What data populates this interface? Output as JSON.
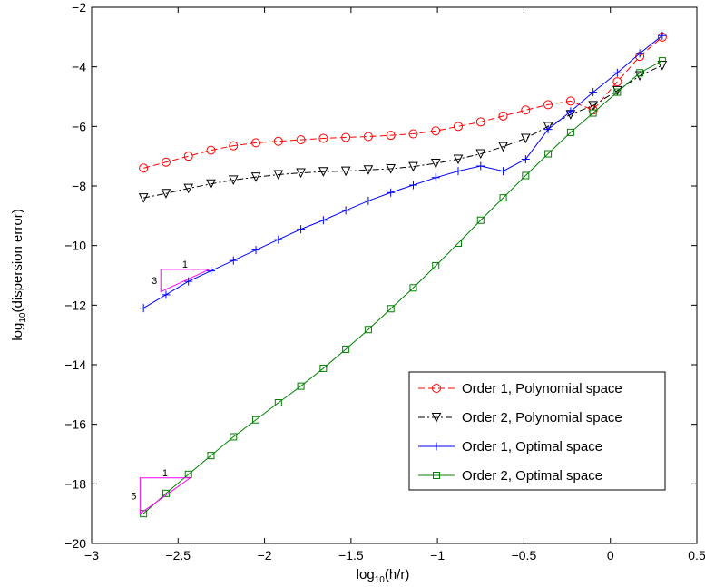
{
  "chart_data": {
    "type": "line",
    "title": "",
    "xlabel": {
      "base": "log",
      "sub": "10",
      "arg": "(h/r)"
    },
    "ylabel": {
      "base": "log",
      "sub": "10",
      "arg": "(dispersion error)"
    },
    "xlim": [
      -3,
      0.5
    ],
    "ylim": [
      -20,
      -2
    ],
    "xticks": [
      -3,
      -2.5,
      -2,
      -1.5,
      -1,
      -0.5,
      0,
      0.5
    ],
    "yticks": [
      -20,
      -18,
      -16,
      -14,
      -12,
      -10,
      -8,
      -6,
      -4,
      -2
    ],
    "xtick_labels": [
      "−3",
      "−2.5",
      "−2",
      "−1.5",
      "−1",
      "−0.5",
      "0",
      "0.5"
    ],
    "ytick_labels": [
      "−20",
      "−18",
      "−16",
      "−14",
      "−12",
      "−10",
      "−8",
      "−6",
      "−4",
      "−2"
    ],
    "grid": false,
    "legend_position": "bottom-right",
    "series": [
      {
        "name": "Order 1, Polynomial space",
        "color": "#ff0000",
        "line": "dashed",
        "marker": "circle",
        "x": [
          -2.7,
          -2.57,
          -2.44,
          -2.31,
          -2.18,
          -2.05,
          -1.92,
          -1.79,
          -1.66,
          -1.53,
          -1.4,
          -1.27,
          -1.14,
          -1.01,
          -0.88,
          -0.75,
          -0.62,
          -0.49,
          -0.36,
          -0.23,
          -0.1,
          0.04,
          0.17,
          0.3
        ],
        "y": [
          -7.4,
          -7.2,
          -7.0,
          -6.8,
          -6.65,
          -6.55,
          -6.5,
          -6.45,
          -6.4,
          -6.37,
          -6.34,
          -6.3,
          -6.25,
          -6.15,
          -6.0,
          -5.85,
          -5.65,
          -5.45,
          -5.27,
          -5.15,
          -5.45,
          -4.5,
          -3.65,
          -3.0
        ]
      },
      {
        "name": "Order 2, Polynomial space",
        "color": "#000000",
        "line": "dashdot",
        "marker": "triangle-down",
        "x": [
          -2.7,
          -2.57,
          -2.44,
          -2.31,
          -2.18,
          -2.05,
          -1.92,
          -1.79,
          -1.66,
          -1.53,
          -1.4,
          -1.27,
          -1.14,
          -1.01,
          -0.88,
          -0.75,
          -0.62,
          -0.49,
          -0.36,
          -0.23,
          -0.1,
          0.04,
          0.17,
          0.3
        ],
        "y": [
          -8.4,
          -8.25,
          -8.08,
          -7.93,
          -7.8,
          -7.7,
          -7.62,
          -7.56,
          -7.52,
          -7.5,
          -7.46,
          -7.42,
          -7.35,
          -7.24,
          -7.1,
          -6.92,
          -6.68,
          -6.4,
          -6.0,
          -5.6,
          -5.3,
          -4.8,
          -4.3,
          -3.95
        ]
      },
      {
        "name": "Order 1, Optimal space",
        "color": "#0000ff",
        "line": "solid",
        "marker": "plus",
        "x": [
          -2.7,
          -2.57,
          -2.44,
          -2.31,
          -2.18,
          -2.05,
          -1.92,
          -1.79,
          -1.66,
          -1.53,
          -1.4,
          -1.27,
          -1.14,
          -1.01,
          -0.88,
          -0.75,
          -0.62,
          -0.49,
          -0.36,
          -0.23,
          -0.1,
          0.04,
          0.17,
          0.3
        ],
        "y": [
          -12.1,
          -11.65,
          -11.2,
          -10.85,
          -10.5,
          -10.15,
          -9.8,
          -9.45,
          -9.15,
          -8.82,
          -8.5,
          -8.22,
          -7.97,
          -7.72,
          -7.5,
          -7.33,
          -7.5,
          -7.1,
          -6.1,
          -5.5,
          -4.85,
          -4.2,
          -3.55,
          -2.95
        ]
      },
      {
        "name": "Order 2, Optimal space",
        "color": "#008000",
        "line": "solid",
        "marker": "square",
        "x": [
          -2.7,
          -2.57,
          -2.44,
          -2.31,
          -2.18,
          -2.05,
          -1.92,
          -1.79,
          -1.66,
          -1.53,
          -1.4,
          -1.27,
          -1.14,
          -1.01,
          -0.88,
          -0.75,
          -0.62,
          -0.49,
          -0.36,
          -0.23,
          -0.1,
          0.04,
          0.17,
          0.3
        ],
        "y": [
          -19.0,
          -18.32,
          -17.68,
          -17.05,
          -16.42,
          -15.85,
          -15.28,
          -14.72,
          -14.12,
          -13.48,
          -12.82,
          -12.12,
          -11.42,
          -10.68,
          -9.92,
          -9.15,
          -8.4,
          -7.65,
          -6.92,
          -6.2,
          -5.55,
          -4.85,
          -4.2,
          -3.8
        ]
      }
    ],
    "annotations": [
      {
        "type": "slope-triangle",
        "color": "#ff00ff",
        "corner": [
          -2.6,
          -11.55
        ],
        "right": [
          -2.32,
          -10.8
        ],
        "top": [
          -2.6,
          -10.8
        ],
        "rise_label": "3",
        "run_label": "1"
      },
      {
        "type": "slope-triangle",
        "color": "#ff00ff",
        "corner": [
          -2.72,
          -19.0
        ],
        "right": [
          -2.43,
          -17.8
        ],
        "top": [
          -2.72,
          -17.8
        ],
        "rise_label": "5",
        "run_label": "1"
      }
    ]
  }
}
